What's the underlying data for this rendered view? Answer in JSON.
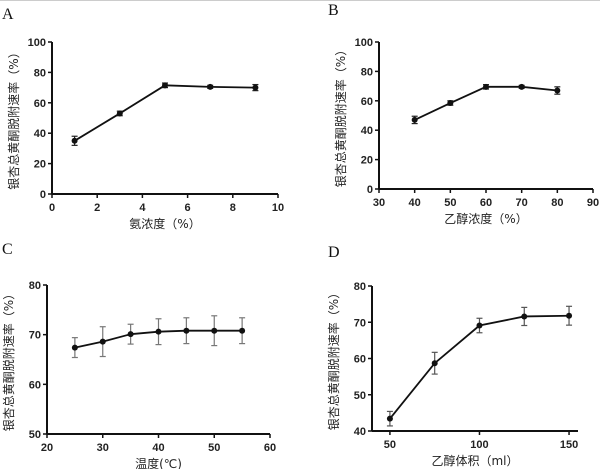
{
  "chart_data": [
    {
      "panel": "A",
      "type": "line",
      "xlabel": "氨浓度（%）",
      "ylabel": "银杏总黄酮脱附速率（%）",
      "xlim": [
        0,
        10
      ],
      "xticks": [
        0,
        2,
        4,
        6,
        8,
        10
      ],
      "ylim": [
        0,
        100
      ],
      "yticks": [
        0,
        20,
        40,
        60,
        80,
        100
      ],
      "x": [
        1,
        3,
        5,
        7,
        9
      ],
      "y": [
        35,
        53,
        71.5,
        70.5,
        70
      ],
      "error": [
        3,
        1.5,
        1.5,
        1,
        2
      ],
      "grid": false
    },
    {
      "panel": "B",
      "type": "line",
      "xlabel": "乙醇浓度（%）",
      "ylabel": "银杏总黄酮脱附速率（%）",
      "xlim": [
        30,
        90
      ],
      "xticks": [
        30,
        40,
        50,
        60,
        70,
        80,
        90
      ],
      "ylim": [
        0,
        100
      ],
      "yticks": [
        0,
        20,
        40,
        60,
        80,
        100
      ],
      "x": [
        40,
        50,
        60,
        70,
        80
      ],
      "y": [
        47,
        58.5,
        69.5,
        69.5,
        67
      ],
      "error": [
        2.5,
        1.5,
        1.5,
        1,
        2.5
      ],
      "grid": false
    },
    {
      "panel": "C",
      "type": "line",
      "xlabel": "温度(℃)",
      "ylabel": "银杏总黄酮脱附速率（%）",
      "xlim": [
        20,
        60
      ],
      "xticks": [
        20,
        30,
        40,
        50,
        60
      ],
      "ylim": [
        50,
        80
      ],
      "yticks": [
        50,
        60,
        70,
        80
      ],
      "x": [
        25,
        30,
        35,
        40,
        45,
        50,
        55
      ],
      "y": [
        67.4,
        68.6,
        70.1,
        70.6,
        70.8,
        70.8,
        70.8
      ],
      "error": [
        2,
        3,
        2,
        2.6,
        2.6,
        3,
        2.6
      ],
      "grid": false
    },
    {
      "panel": "D",
      "type": "line",
      "xlabel": "乙醇体积（ml）",
      "ylabel": "银杏总黄酮脱附速率（%）",
      "xlim": [
        40,
        155
      ],
      "xticks": [
        50,
        100,
        150
      ],
      "ylim": [
        40,
        80
      ],
      "yticks": [
        40,
        50,
        60,
        70,
        80
      ],
      "x": [
        50,
        75,
        100,
        125,
        150
      ],
      "y": [
        43.4,
        58.7,
        69.1,
        71.6,
        71.8
      ],
      "error": [
        2,
        3,
        2,
        2.5,
        2.6
      ],
      "grid": false
    }
  ]
}
